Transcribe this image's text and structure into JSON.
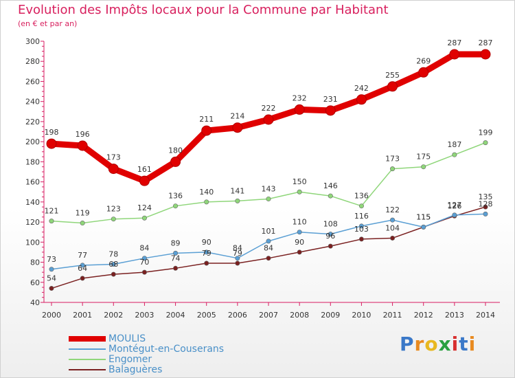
{
  "header": {
    "title": "Evolution des Impôts locaux pour la Commune par Habitant",
    "subtitle": "(en € et par an)"
  },
  "brand": {
    "letters": [
      "P",
      "r",
      "o",
      "x",
      "i",
      "t",
      "i"
    ],
    "colors": [
      "#3a78c8",
      "#e88a20",
      "#e8b820",
      "#2aa040",
      "#d83030",
      "#3a78c8",
      "#e88a20"
    ]
  },
  "chart_data": {
    "type": "line",
    "x": [
      2000,
      2001,
      2002,
      2003,
      2004,
      2005,
      2006,
      2007,
      2008,
      2009,
      2010,
      2011,
      2012,
      2013,
      2014
    ],
    "ylim": [
      40,
      300
    ],
    "yticks": [
      40,
      60,
      80,
      100,
      120,
      140,
      160,
      180,
      200,
      220,
      240,
      260,
      280,
      300
    ],
    "grid": false,
    "legend_position": "bottom",
    "series": [
      {
        "name": "MOULIS",
        "color": "#e00000",
        "values": [
          198,
          196,
          173,
          161,
          180,
          211,
          214,
          222,
          232,
          231,
          242,
          255,
          269,
          287,
          287
        ]
      },
      {
        "name": "Montégut-en-Couserans",
        "color": "#5a9fd4",
        "values": [
          73,
          77,
          78,
          84,
          89,
          90,
          84,
          101,
          110,
          108,
          116,
          122,
          115,
          127,
          128
        ]
      },
      {
        "name": "Engomer",
        "color": "#8fd67a",
        "values": [
          121,
          119,
          123,
          124,
          136,
          140,
          141,
          143,
          150,
          146,
          136,
          173,
          175,
          187,
          199
        ]
      },
      {
        "name": "Balaguères",
        "color": "#7a2020",
        "values": [
          54,
          64,
          68,
          70,
          74,
          79,
          79,
          84,
          90,
          96,
          103,
          104,
          115,
          126,
          135
        ]
      }
    ]
  }
}
